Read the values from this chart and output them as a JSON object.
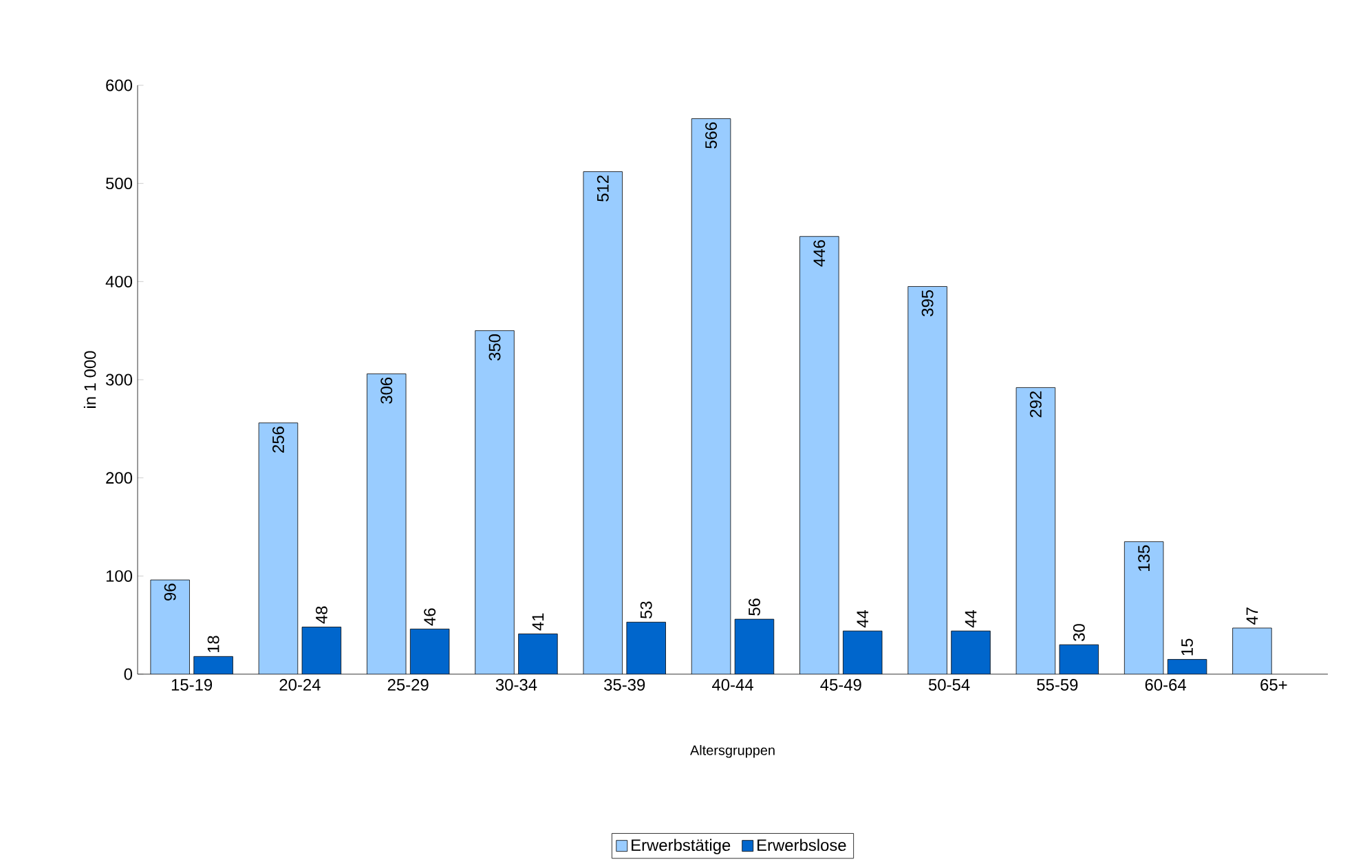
{
  "chart_data": {
    "type": "bar",
    "categories": [
      "15-19",
      "20-24",
      "25-29",
      "30-34",
      "35-39",
      "40-44",
      "45-49",
      "50-54",
      "55-59",
      "60-64",
      "65+"
    ],
    "series": [
      {
        "name": "Erwerbstätige",
        "color": "#99ccff",
        "values": [
          96,
          256,
          306,
          350,
          512,
          566,
          446,
          395,
          292,
          135,
          47
        ]
      },
      {
        "name": "Erwerbslose",
        "color": "#0066cc",
        "values": [
          18,
          48,
          46,
          41,
          53,
          56,
          44,
          44,
          30,
          15,
          null
        ]
      }
    ],
    "xlabel": "Altersgruppen",
    "ylabel": "in 1 000",
    "ylim": [
      0,
      600
    ],
    "yticks": [
      0,
      100,
      200,
      300,
      400,
      500,
      600
    ],
    "data_labels": true,
    "legend": "bottom"
  }
}
